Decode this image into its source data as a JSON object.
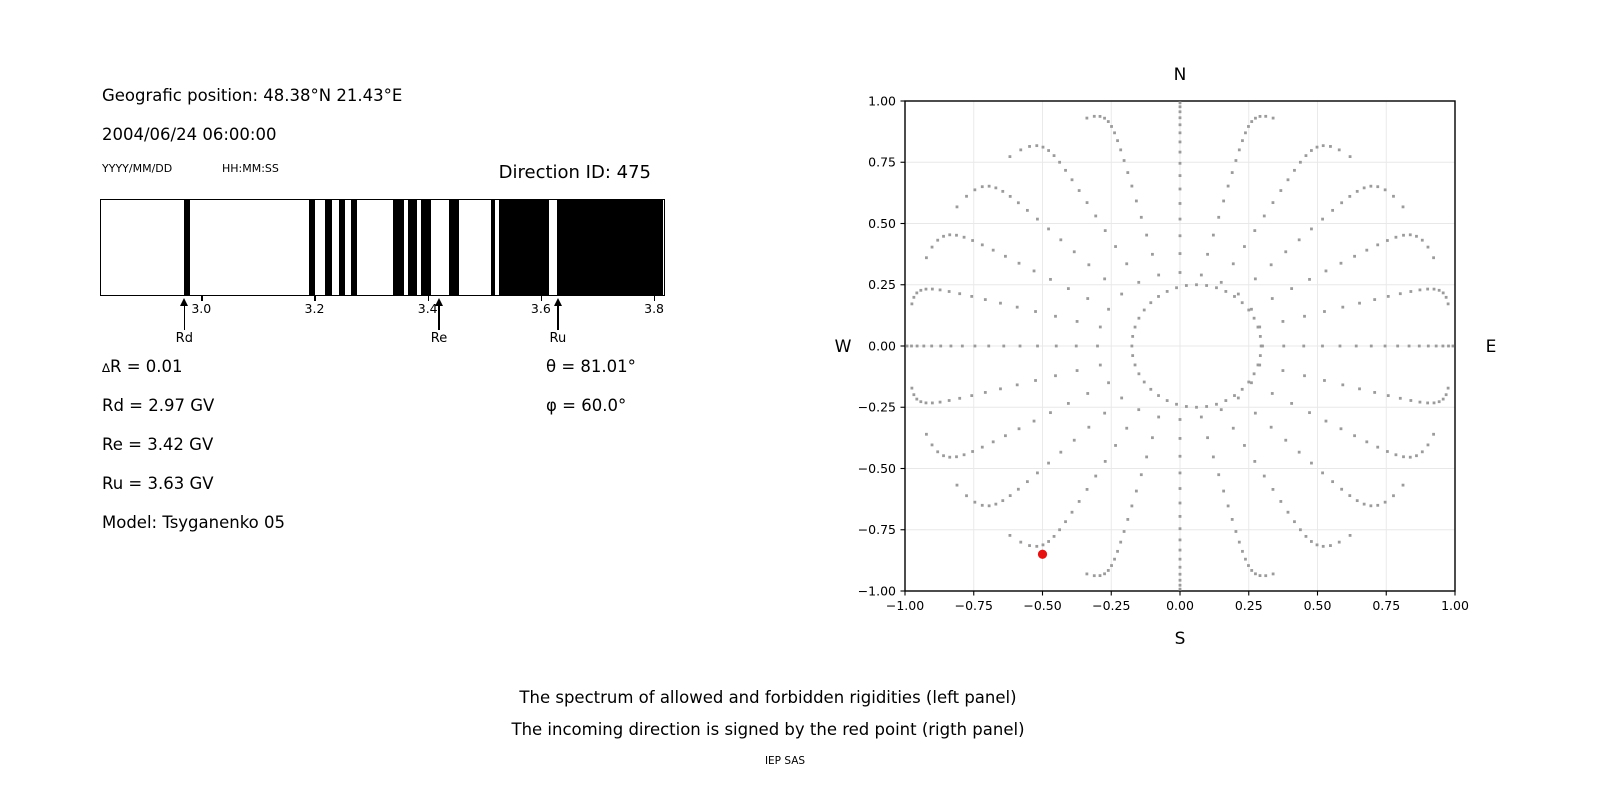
{
  "header": {
    "geographic_position": "Geografic position: 48.38°N 21.43°E",
    "datetime": "2004/06/24 06:00:00",
    "date_format_label": "YYYY/MM/DD",
    "time_format_label": "HH:MM:SS",
    "direction_id": "Direction ID: 475"
  },
  "left_panel": {
    "delta_symbol": "∆",
    "delta_rest": "R = 0.01",
    "rd": "Rd = 2.97 GV",
    "re": "Re = 3.42 GV",
    "ru": "Ru = 3.63 GV",
    "model": "Model: Tsyganenko 05",
    "theta": "θ = 81.01°",
    "phi": "φ = 60.0°"
  },
  "footer": {
    "line1": "The spectrum of allowed and forbidden rigidities (left panel)",
    "line2": "The incoming direction is signed by the red point (rigth panel)",
    "credit": "IEP SAS"
  },
  "chart_data": [
    {
      "type": "bar",
      "title": "Spectrum of allowed (white) and forbidden (black) rigidities",
      "x_range": [
        2.821,
        3.814
      ],
      "x_ticks": [
        3.0,
        3.2,
        3.4,
        3.6,
        3.8
      ],
      "x_tick_labels": [
        "3.0",
        "3.2",
        "3.4",
        "3.6",
        "3.8"
      ],
      "forbidden_bands_gv": [
        [
          2.968,
          2.978
        ],
        [
          3.189,
          3.2
        ],
        [
          3.217,
          3.229
        ],
        [
          3.241,
          3.253
        ],
        [
          3.263,
          3.274
        ],
        [
          3.337,
          3.357
        ],
        [
          3.364,
          3.379
        ],
        [
          3.387,
          3.404
        ],
        [
          3.436,
          3.453
        ],
        [
          3.51,
          3.518
        ],
        [
          3.525,
          3.613
        ],
        [
          3.626,
          3.814
        ]
      ],
      "markers": [
        {
          "name": "Rd",
          "value_gv": 2.97
        },
        {
          "name": "Re",
          "value_gv": 3.42
        },
        {
          "name": "Ru",
          "value_gv": 3.63
        }
      ],
      "bar_color": "#000000"
    },
    {
      "type": "scatter",
      "xlim": [
        -1,
        1
      ],
      "ylim": [
        -1,
        1
      ],
      "ticks": [
        -1,
        -0.75,
        -0.5,
        -0.25,
        0,
        0.25,
        0.5,
        0.75,
        1
      ],
      "tick_labels": [
        "−1.00",
        "−0.75",
        "−0.50",
        "−0.25",
        "0.00",
        "0.25",
        "0.50",
        "0.75",
        "1.00"
      ],
      "grid": true,
      "compass": {
        "top": "N",
        "bottom": "S",
        "left": "W",
        "right": "E"
      },
      "inner_ring": {
        "cx": 0.06,
        "cy": 0.0,
        "rx": 0.235,
        "ry": 0.25,
        "n_dots": 40
      },
      "spokes": {
        "count": 24,
        "azimuth_step_deg": 15,
        "r_start": 0.3,
        "r_tip": 0.99,
        "r_tip_cardinal": 1.02,
        "dots_per_spoke": 17,
        "tip_bend_deg": 10
      },
      "red_point": {
        "x": -0.5,
        "y": -0.85
      },
      "dot_color": "#9b9b9b",
      "red_color": "#e61212",
      "grid_color": "#e8e8e8"
    }
  ]
}
